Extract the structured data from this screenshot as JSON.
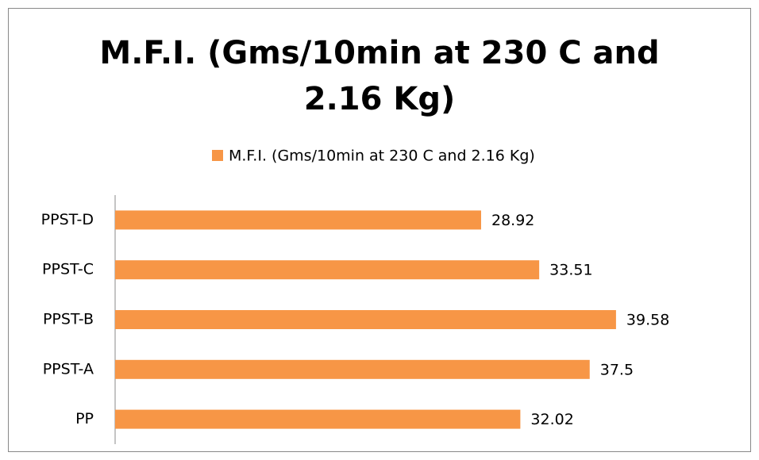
{
  "chart_data": {
    "type": "bar",
    "orientation": "horizontal",
    "title": "M.F.I. (Gms/10min at 230 C and 2.16 Kg)",
    "categories": [
      "PP",
      "PPST-A",
      "PPST-B",
      "PPST-C",
      "PPST-D"
    ],
    "series": [
      {
        "name": "M.F.I. (Gms/10min at 230 C and 2.16 Kg)",
        "color": "#f79646",
        "values": [
          32.02,
          37.5,
          39.58,
          33.51,
          28.92
        ]
      }
    ],
    "xlim": [
      0,
      50
    ],
    "legend": "top"
  }
}
